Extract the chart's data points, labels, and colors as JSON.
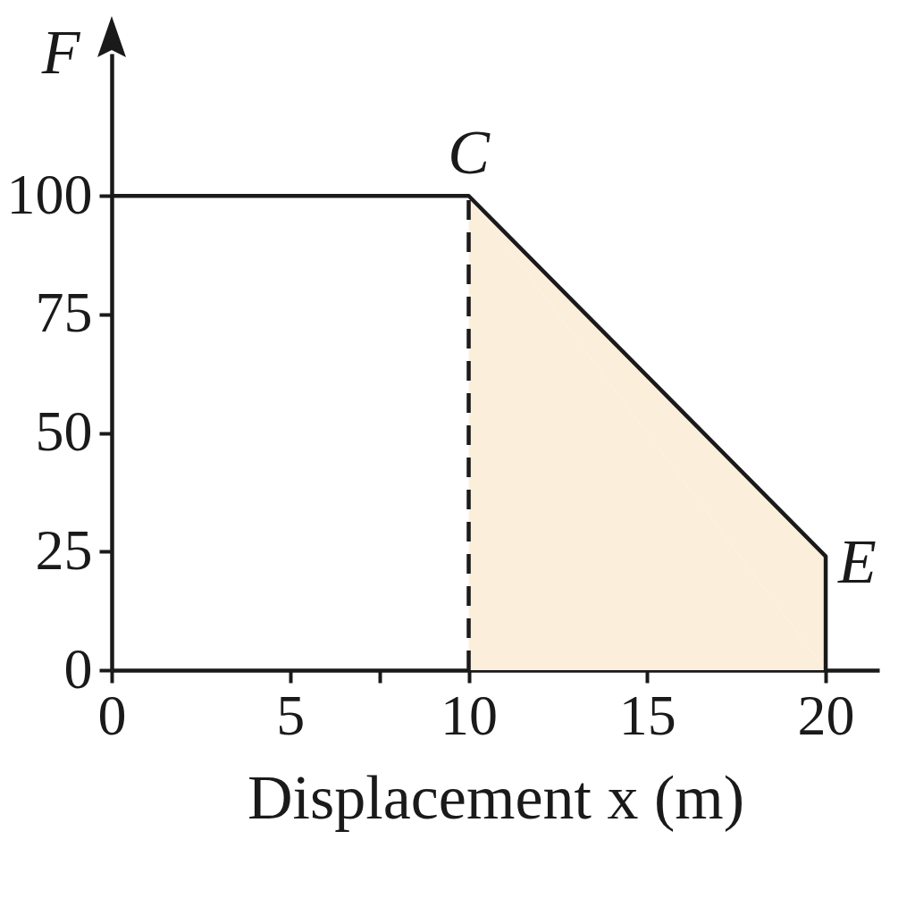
{
  "chart_data": {
    "type": "line",
    "xlabel": "Displacement x (m)",
    "ylabel": "F",
    "xlim": [
      0,
      21.5
    ],
    "ylim": [
      0,
      130
    ],
    "xticks": [
      0,
      5,
      {
        "value": 7.5,
        "label": null
      },
      10,
      15,
      20
    ],
    "yticks": [
      0,
      25,
      50,
      75,
      100
    ],
    "series": [
      {
        "type": "area",
        "color": "#fbefdc",
        "x": [
          10,
          20
        ],
        "values": [
          100,
          24
        ]
      },
      {
        "color": "#1a1a1a",
        "x": [
          0,
          10,
          20,
          20
        ],
        "values": [
          100,
          100,
          24,
          0
        ]
      }
    ],
    "ref_lines": [
      {
        "axis": "x",
        "value": 10,
        "line_style": "dashed",
        "color": "#1a1a1a"
      }
    ],
    "annotations": [
      {
        "text": "C",
        "x": 10,
        "y": 100
      },
      {
        "text": "E",
        "x": 20,
        "y": 24
      }
    ]
  }
}
